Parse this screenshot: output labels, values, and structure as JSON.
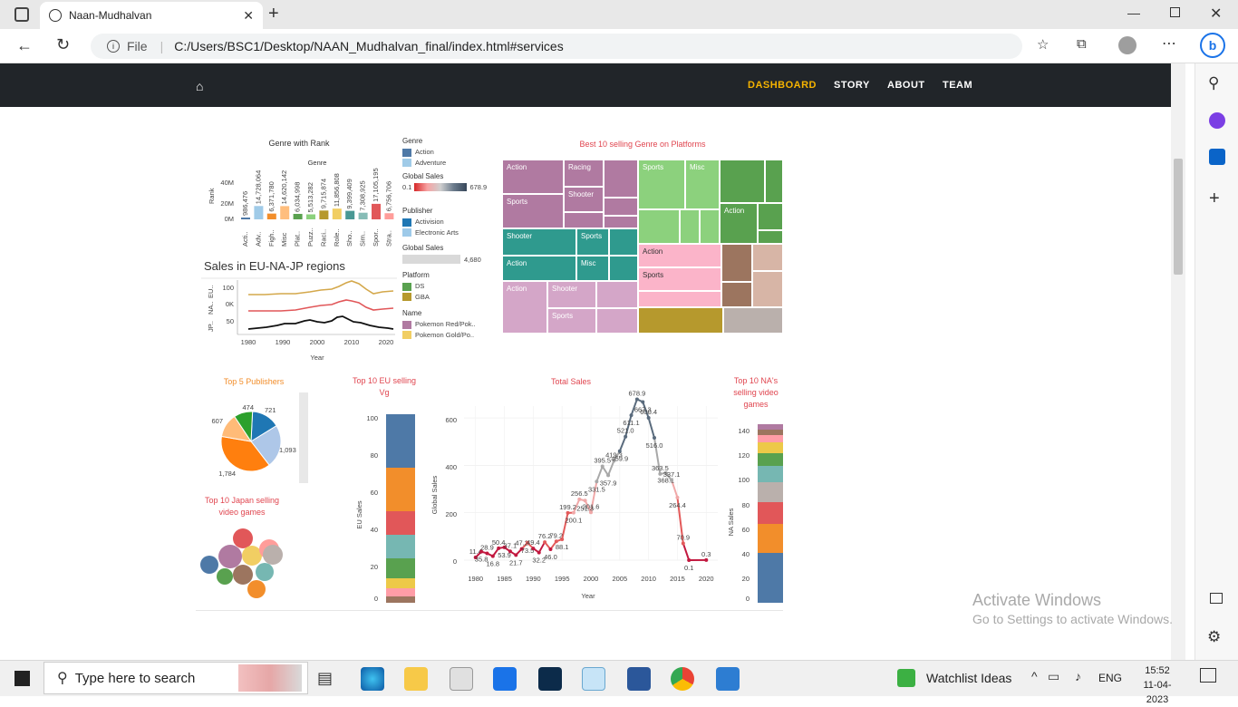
{
  "browser": {
    "tab_title": "Naan-Mudhalvan",
    "file_label": "File",
    "url": "C:/Users/BSC1/Desktop/NAAN_Mudhalvan_final/index.html#services"
  },
  "nav": {
    "links": [
      "DASHBOARD",
      "STORY",
      "ABOUT",
      "TEAM"
    ],
    "active_color": "#f5b300"
  },
  "genre_rank": {
    "title": "Genre with Rank",
    "subtitle": "Genre",
    "ylabel": "Rank",
    "yticks": [
      "40M",
      "20M",
      "0M"
    ],
    "bars": [
      {
        "label": "Acti..",
        "value": "986,476",
        "color": "#4e79a7"
      },
      {
        "label": "Adv..",
        "value": "14,728,064",
        "color": "#a0cbe8"
      },
      {
        "label": "Figh..",
        "value": "6,371,780",
        "color": "#f28e2b"
      },
      {
        "label": "Misc",
        "value": "14,620,142",
        "color": "#ffbe7d"
      },
      {
        "label": "Plat..",
        "value": "6,034,998",
        "color": "#59a14f"
      },
      {
        "label": "Puzz..",
        "value": "5,513,282",
        "color": "#8cd17d"
      },
      {
        "label": "Raci..",
        "value": "9,715,874",
        "color": "#b6992d"
      },
      {
        "label": "Role..",
        "value": "11,856,808",
        "color": "#f1ce63"
      },
      {
        "label": "Sho..",
        "value": "9,399,409",
        "color": "#499894"
      },
      {
        "label": "Sim..",
        "value": "7,308,925",
        "color": "#86bcb6"
      },
      {
        "label": "Spor..",
        "value": "17,105,195",
        "color": "#e15759"
      },
      {
        "label": "Stra..",
        "value": "6,756,706",
        "color": "#ff9d9a"
      }
    ]
  },
  "legend": {
    "genre_head": "Genre",
    "genre_items": [
      {
        "label": "Action",
        "color": "#4e79a7"
      },
      {
        "label": "Adventure",
        "color": "#a0cbe8"
      }
    ],
    "global_sales_head": "Global Sales",
    "global_sales_min": "0.1",
    "global_sales_max": "678.9",
    "publisher_head": "Publisher",
    "publisher_items": [
      {
        "label": "Activision",
        "color": "#1f77b4"
      },
      {
        "label": "Electronic Arts",
        "color": "#9ecae9"
      }
    ],
    "global_sales2_head": "Global Sales",
    "global_sales2_value": "4,680",
    "platform_head": "Platform",
    "platform_items": [
      {
        "label": "DS",
        "color": "#59a14f"
      },
      {
        "label": "GBA",
        "color": "#b6992d"
      }
    ],
    "name_head": "Name",
    "name_items": [
      {
        "label": "Pokemon Red/Pok..",
        "color": "#b07aa1"
      },
      {
        "label": "Pokemon Gold/Po..",
        "color": "#f1ce63"
      }
    ]
  },
  "regions": {
    "title": "Sales in EU-NA-JP regions",
    "row_labels": [
      "EU..",
      "NA..",
      "JP.."
    ],
    "ytick_labels": [
      "100",
      "0K",
      "50"
    ],
    "xticks": [
      "1980",
      "1990",
      "2000",
      "2010",
      "2020"
    ],
    "xlabel": "Year"
  },
  "treemap": {
    "title": "Best 10 selling Genre on Platforms",
    "labels": [
      "Action",
      "Racing",
      "Sports",
      "Shooter",
      "Sports",
      "Misc",
      "Action",
      "Shooter",
      "Sports",
      "Action",
      "Misc",
      "Action",
      "Sports",
      "Action",
      "Shooter",
      "Sports"
    ]
  },
  "publishers": {
    "title": "Top 5 Publishers",
    "slices": [
      {
        "label": "721",
        "value": 721,
        "color": "#1f77b4"
      },
      {
        "label": "1,093",
        "value": 1093,
        "color": "#aec7e8"
      },
      {
        "label": "1,784",
        "value": 1784,
        "color": "#ff7f0e"
      },
      {
        "label": "607",
        "value": 607,
        "color": "#ffbb78"
      },
      {
        "label": "474",
        "value": 474,
        "color": "#2ca02c"
      }
    ]
  },
  "japan": {
    "title": "Top 10 Japan selling video games"
  },
  "eu_top10": {
    "title": "Top 10 EU selling Vg",
    "ylabel": "EU Sales",
    "yticks": [
      "100",
      "80",
      "60",
      "40",
      "20",
      "0"
    ]
  },
  "total_sales": {
    "title": "Total Sales",
    "ylabel": "Global Sales",
    "xlabel": "Year",
    "yticks": [
      "600",
      "400",
      "200",
      "0"
    ],
    "xticks": [
      "1980",
      "1985",
      "1990",
      "1995",
      "2000",
      "2005",
      "2010",
      "2015",
      "2020"
    ]
  },
  "na_top10": {
    "title": "Top 10 NA's selling video games",
    "ylabel": "NA Sales",
    "yticks": [
      "140",
      "120",
      "100",
      "80",
      "60",
      "40",
      "20",
      "0"
    ]
  },
  "chart_data": [
    {
      "type": "line",
      "title": "Total Sales",
      "xlabel": "Year",
      "ylabel": "Global Sales",
      "ylim": [
        0,
        700
      ],
      "x": [
        1980,
        1981,
        1982,
        1983,
        1984,
        1985,
        1986,
        1987,
        1988,
        1989,
        1990,
        1991,
        1992,
        1993,
        1994,
        1995,
        1996,
        1997,
        1998,
        1999,
        2000,
        2001,
        2002,
        2003,
        2004,
        2005,
        2006,
        2007,
        2008,
        2009,
        2010,
        2011,
        2012,
        2013,
        2014,
        2015,
        2016,
        2017,
        2020
      ],
      "values": [
        11.4,
        35.8,
        28.9,
        16.8,
        50.4,
        53.9,
        37.1,
        21.7,
        47.2,
        73.5,
        49.4,
        32.2,
        76.2,
        46.0,
        79.2,
        88.1,
        199.2,
        200.1,
        256.5,
        251.3,
        201.6,
        331.5,
        395.5,
        357.9,
        419.3,
        459.9,
        521.0,
        611.1,
        678.9,
        667.3,
        600.4,
        516.0,
        363.5,
        368.1,
        337.1,
        264.4,
        70.9,
        0.1,
        0.3
      ]
    },
    {
      "type": "bar",
      "title": "Genre with Rank",
      "categories": [
        "Acti..",
        "Adv..",
        "Figh..",
        "Misc",
        "Plat..",
        "Puzz..",
        "Raci..",
        "Role..",
        "Sho..",
        "Sim..",
        "Spor..",
        "Stra.."
      ],
      "values": [
        986476,
        14728064,
        6371780,
        14620142,
        6034998,
        5513282,
        9715874,
        11856808,
        9399409,
        7308925,
        17105195,
        6756706
      ],
      "ylabel": "Rank",
      "ylim": [
        0,
        40000000
      ]
    },
    {
      "type": "pie",
      "title": "Top 5 Publishers",
      "categories": [
        "721",
        "1,093",
        "1,784",
        "607",
        "474"
      ],
      "values": [
        721,
        1093,
        1784,
        607,
        474
      ]
    }
  ],
  "activate": {
    "line1": "Activate Windows",
    "line2": "Go to Settings to activate Windows."
  },
  "taskbar": {
    "search_placeholder": "Type here to search",
    "watchlist": "Watchlist Ideas",
    "lang": "ENG",
    "time": "15:52",
    "date": "11-04-2023"
  }
}
